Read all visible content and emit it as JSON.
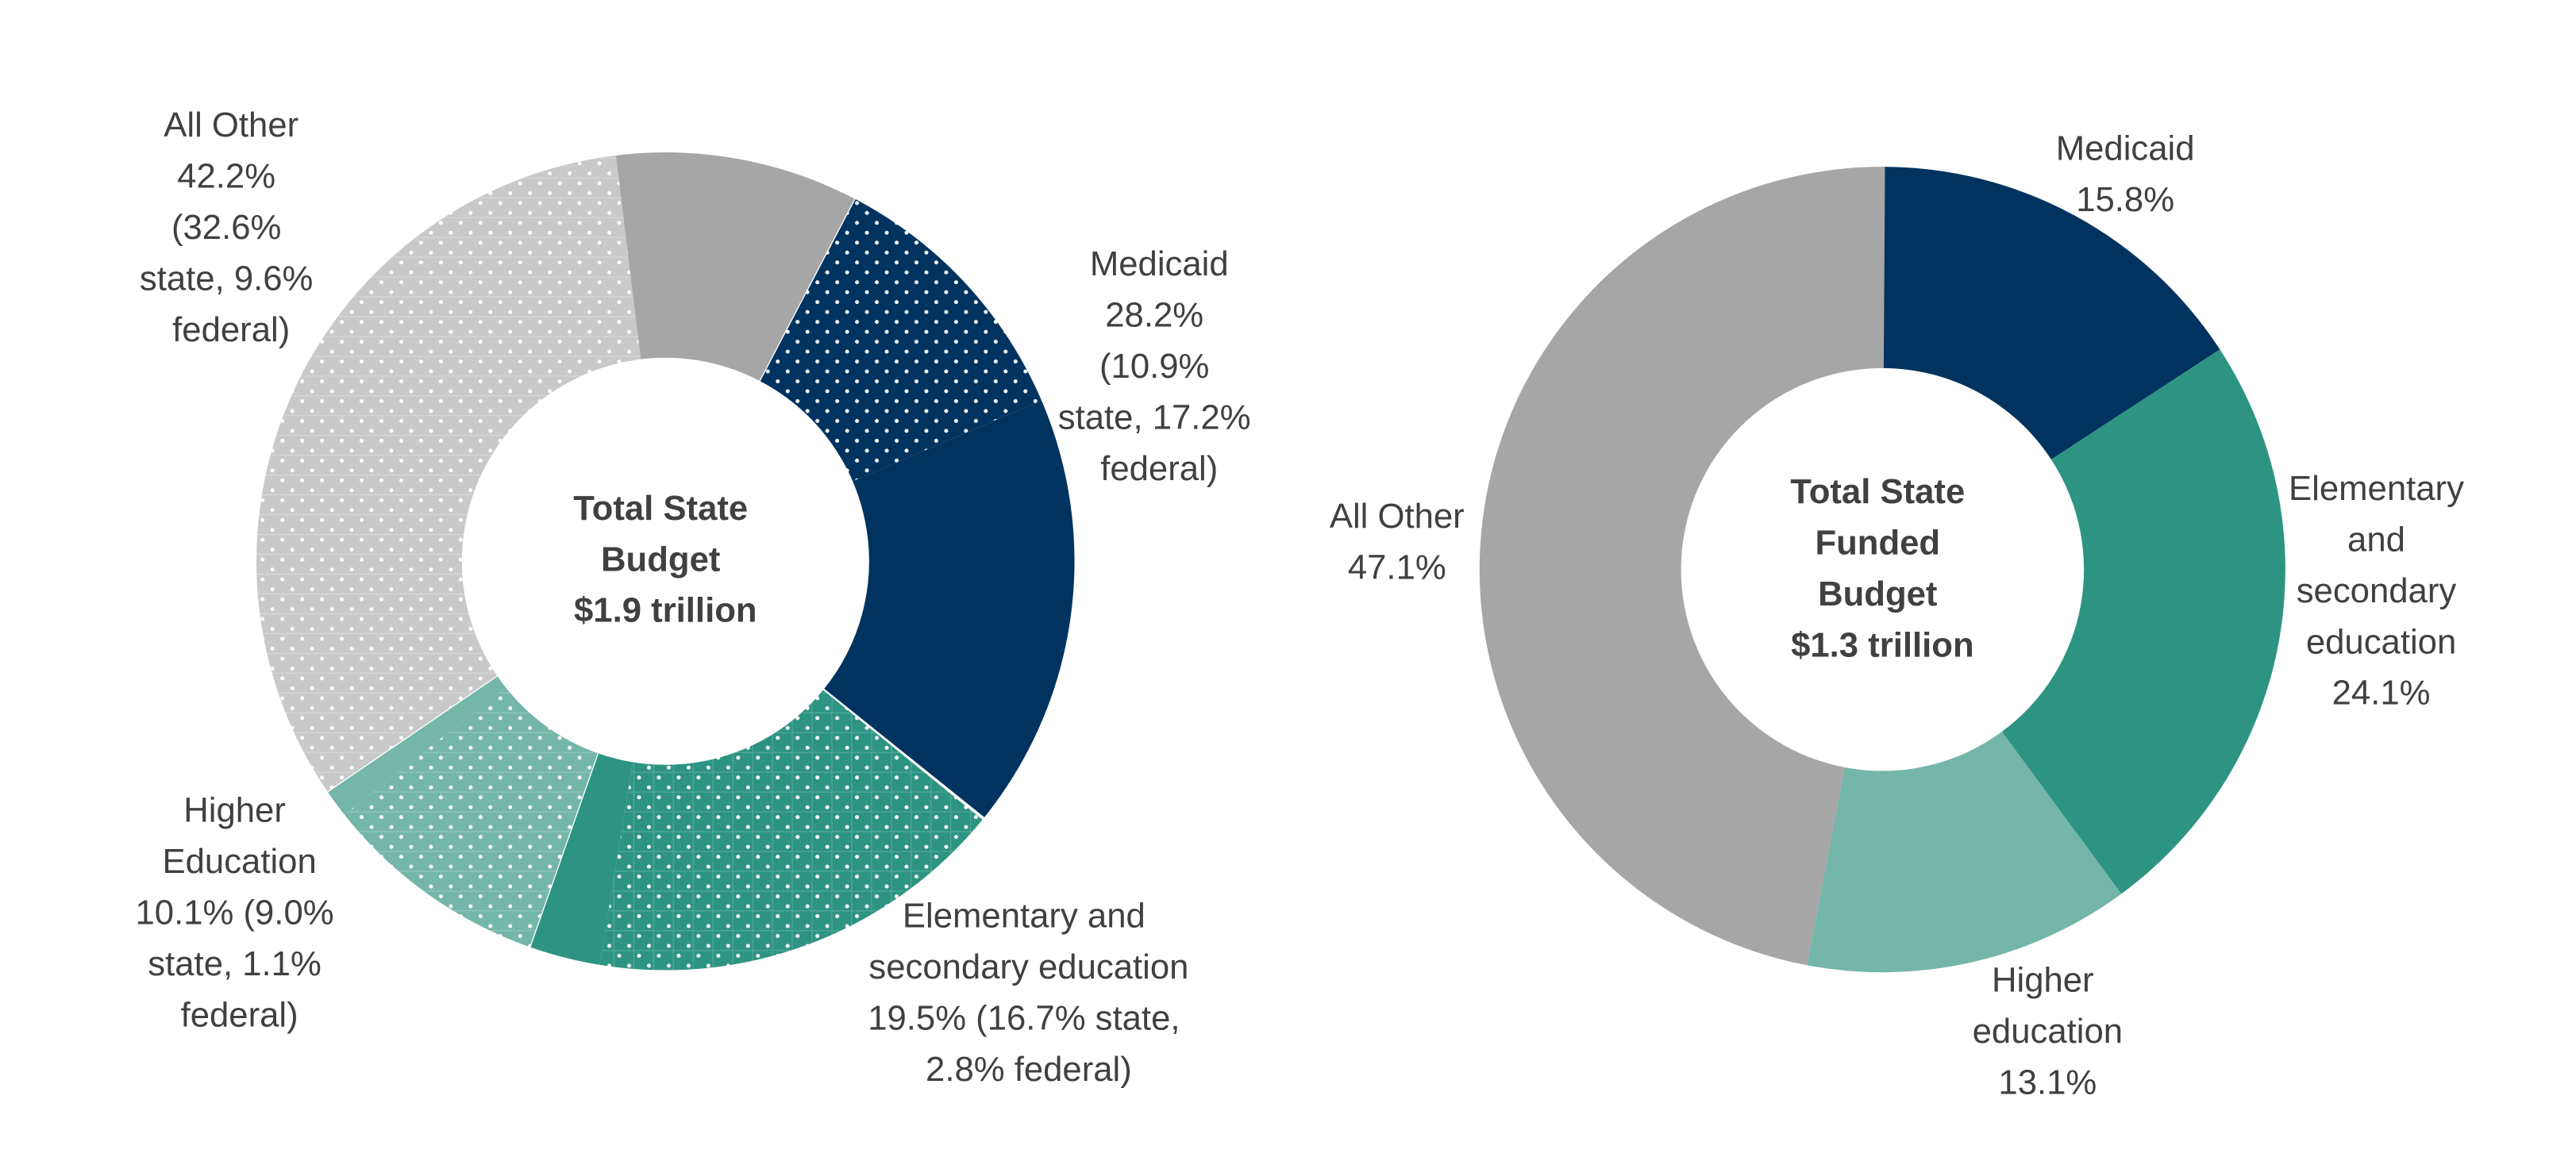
{
  "chart_data": [
    {
      "type": "donut",
      "title": "Total State Budget $1.9 trillion",
      "categories": [
        "Medicaid",
        "Elementary and secondary education",
        "Higher Education",
        "All Other"
      ],
      "values": [
        28.2,
        19.5,
        10.1,
        42.2
      ],
      "value_labels": [
        "28.2% (10.9% state, 17.2% federal)",
        "19.5% (16.7% state, 2.8% federal)",
        "10.1% (9.0% state, 1.1% federal)",
        "42.2% (32.6% state, 9.6% federal)"
      ],
      "colors": [
        "#00335f",
        "#2e9482",
        "#74b6a8",
        "#a6a6a6"
      ],
      "state_colors": [
        "#00335f",
        "#2e9482",
        "#74b6a8",
        "#c9c9c9"
      ],
      "series": [
        {
          "name": "state",
          "values": [
            10.9,
            16.7,
            9.0,
            32.6
          ]
        },
        {
          "name": "federal",
          "values": [
            17.2,
            2.8,
            1.1,
            9.6
          ]
        }
      ]
    },
    {
      "type": "donut",
      "title": "Total State Funded Budget $1.3 trillion",
      "categories": [
        "Medicaid",
        "Elementary and secondary education",
        "Higher education",
        "All Other"
      ],
      "values": [
        15.8,
        24.1,
        13.1,
        47.1
      ],
      "value_labels": [
        "15.8%",
        "24.1%",
        "13.1%",
        "47.1%"
      ],
      "colors": [
        "#00335f",
        "#2e9482",
        "#74b6a8",
        "#a6a6a6"
      ]
    }
  ]
}
